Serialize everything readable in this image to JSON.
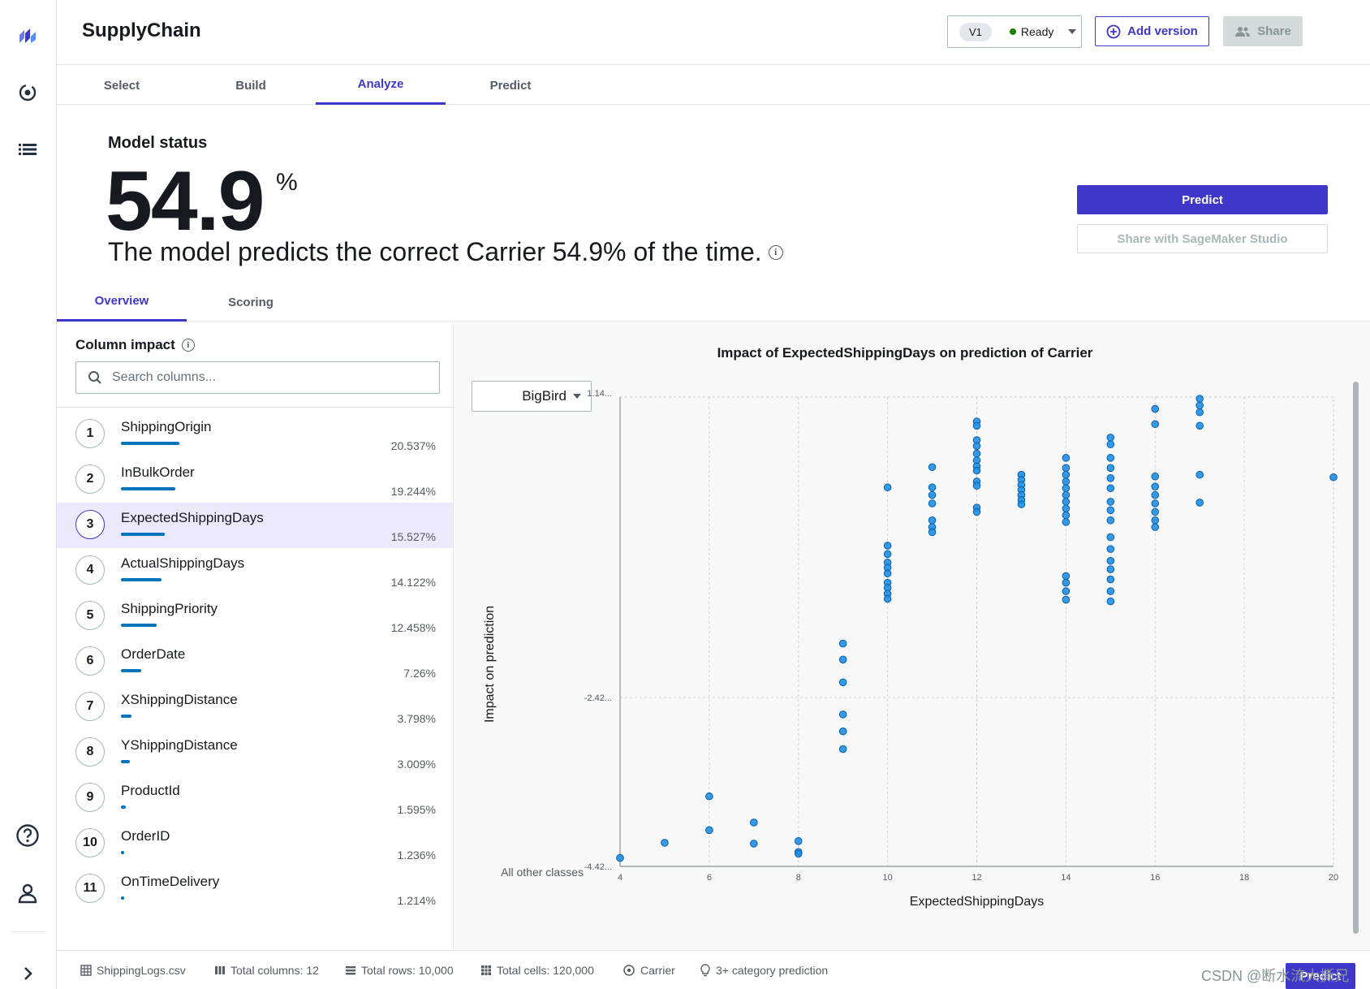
{
  "header": {
    "title": "SupplyChain",
    "version_label": "V1",
    "status": "Ready",
    "add_version": "Add version",
    "share": "Share",
    "status_color": "#1d8102",
    "accent": "#3f37c9"
  },
  "rail": {
    "icons": [
      "logo-icon",
      "models-icon",
      "list-icon",
      "help-icon",
      "user-icon",
      "expand-icon"
    ]
  },
  "tabs": [
    "Select",
    "Build",
    "Analyze",
    "Predict"
  ],
  "status": {
    "heading": "Model status",
    "accuracy": "54.9",
    "unit": "%",
    "description": "The model predicts the correct Carrier 54.9% of the time.",
    "predict_button": "Predict",
    "share_button": "Share with SageMaker Studio"
  },
  "subtabs": [
    "Overview",
    "Scoring"
  ],
  "column_impact": {
    "title": "Column impact",
    "search_placeholder": "Search columns...",
    "rows": [
      {
        "rank": "1",
        "name": "ShippingOrigin",
        "pct": "20.537%",
        "value": 20.537
      },
      {
        "rank": "2",
        "name": "InBulkOrder",
        "pct": "19.244%",
        "value": 19.244
      },
      {
        "rank": "3",
        "name": "ExpectedShippingDays",
        "pct": "15.527%",
        "value": 15.527
      },
      {
        "rank": "4",
        "name": "ActualShippingDays",
        "pct": "14.122%",
        "value": 14.122
      },
      {
        "rank": "5",
        "name": "ShippingPriority",
        "pct": "12.458%",
        "value": 12.458
      },
      {
        "rank": "6",
        "name": "OrderDate",
        "pct": "7.26%",
        "value": 7.26
      },
      {
        "rank": "7",
        "name": "XShippingDistance",
        "pct": "3.798%",
        "value": 3.798
      },
      {
        "rank": "8",
        "name": "YShippingDistance",
        "pct": "3.009%",
        "value": 3.009
      },
      {
        "rank": "9",
        "name": "ProductId",
        "pct": "1.595%",
        "value": 1.595
      },
      {
        "rank": "10",
        "name": "OrderID",
        "pct": "1.236%",
        "value": 1.236
      },
      {
        "rank": "11",
        "name": "OnTimeDelivery",
        "pct": "1.214%",
        "value": 1.214
      }
    ]
  },
  "chart": {
    "class_selected": "BigBird"
  },
  "chart_data": {
    "type": "scatter",
    "title": "Impact of ExpectedShippingDays on prediction of Carrier",
    "xlabel": "ExpectedShippingDays",
    "ylabel": "Impact on prediction",
    "baseline_label": "All other classes",
    "xlim": [
      4,
      20
    ],
    "ylim": [
      -4.42,
      1.14
    ],
    "x_ticks": [
      "4",
      "6",
      "8",
      "10",
      "12",
      "14",
      "16",
      "18",
      "20"
    ],
    "y_tick_labels": [
      "1.14...",
      "-2.42...",
      "-4.42..."
    ],
    "y_tick_values": [
      1.14,
      -2.42,
      -4.42
    ],
    "point_color": "#1e8fe6",
    "points": [
      {
        "x": 4,
        "y": -4.32
      },
      {
        "x": 5,
        "y": -4.14
      },
      {
        "x": 6,
        "y": -3.59
      },
      {
        "x": 6,
        "y": -3.99
      },
      {
        "x": 7,
        "y": -3.9
      },
      {
        "x": 7,
        "y": -4.15
      },
      {
        "x": 8,
        "y": -4.12
      },
      {
        "x": 8,
        "y": -4.25
      },
      {
        "x": 8,
        "y": -4.27
      },
      {
        "x": 9,
        "y": -1.78
      },
      {
        "x": 9,
        "y": -1.97
      },
      {
        "x": 9,
        "y": -2.24
      },
      {
        "x": 9,
        "y": -2.62
      },
      {
        "x": 9,
        "y": -2.82
      },
      {
        "x": 9,
        "y": -3.03
      },
      {
        "x": 10,
        "y": 0.07
      },
      {
        "x": 10,
        "y": -0.62
      },
      {
        "x": 10,
        "y": -0.72
      },
      {
        "x": 10,
        "y": -0.82
      },
      {
        "x": 10,
        "y": -0.88
      },
      {
        "x": 10,
        "y": -0.95
      },
      {
        "x": 10,
        "y": -1.06
      },
      {
        "x": 10,
        "y": -1.12
      },
      {
        "x": 10,
        "y": -1.19
      },
      {
        "x": 10,
        "y": -1.25
      },
      {
        "x": 11,
        "y": 0.31
      },
      {
        "x": 11,
        "y": 0.07
      },
      {
        "x": 11,
        "y": -0.02
      },
      {
        "x": 11,
        "y": -0.12
      },
      {
        "x": 11,
        "y": -0.32
      },
      {
        "x": 11,
        "y": -0.4
      },
      {
        "x": 11,
        "y": -0.46
      },
      {
        "x": 12,
        "y": 0.85
      },
      {
        "x": 12,
        "y": 0.8
      },
      {
        "x": 12,
        "y": 0.63
      },
      {
        "x": 12,
        "y": 0.56
      },
      {
        "x": 12,
        "y": 0.47
      },
      {
        "x": 12,
        "y": 0.39
      },
      {
        "x": 12,
        "y": 0.32
      },
      {
        "x": 12,
        "y": 0.27
      },
      {
        "x": 12,
        "y": 0.14
      },
      {
        "x": 12,
        "y": 0.09
      },
      {
        "x": 12,
        "y": -0.17
      },
      {
        "x": 12,
        "y": -0.22
      },
      {
        "x": 13,
        "y": 0.22
      },
      {
        "x": 13,
        "y": 0.16
      },
      {
        "x": 13,
        "y": 0.1
      },
      {
        "x": 13,
        "y": 0.04
      },
      {
        "x": 13,
        "y": -0.02
      },
      {
        "x": 13,
        "y": -0.08
      },
      {
        "x": 13,
        "y": -0.13
      },
      {
        "x": 14,
        "y": 0.42
      },
      {
        "x": 14,
        "y": 0.3
      },
      {
        "x": 14,
        "y": 0.22
      },
      {
        "x": 14,
        "y": 0.14
      },
      {
        "x": 14,
        "y": 0.06
      },
      {
        "x": 14,
        "y": -0.02
      },
      {
        "x": 14,
        "y": -0.1
      },
      {
        "x": 14,
        "y": -0.18
      },
      {
        "x": 14,
        "y": -0.26
      },
      {
        "x": 14,
        "y": -0.34
      },
      {
        "x": 14,
        "y": -0.98
      },
      {
        "x": 14,
        "y": -1.06
      },
      {
        "x": 14,
        "y": -1.16
      },
      {
        "x": 14,
        "y": -1.26
      },
      {
        "x": 15,
        "y": 0.66
      },
      {
        "x": 15,
        "y": 0.58
      },
      {
        "x": 15,
        "y": 0.42
      },
      {
        "x": 15,
        "y": 0.3
      },
      {
        "x": 15,
        "y": 0.18
      },
      {
        "x": 15,
        "y": 0.06
      },
      {
        "x": 15,
        "y": -0.1
      },
      {
        "x": 15,
        "y": -0.2
      },
      {
        "x": 15,
        "y": -0.32
      },
      {
        "x": 15,
        "y": -0.52
      },
      {
        "x": 15,
        "y": -0.66
      },
      {
        "x": 15,
        "y": -0.8
      },
      {
        "x": 15,
        "y": -0.9
      },
      {
        "x": 15,
        "y": -1.02
      },
      {
        "x": 15,
        "y": -1.16
      },
      {
        "x": 15,
        "y": -1.28
      },
      {
        "x": 16,
        "y": 1.0
      },
      {
        "x": 16,
        "y": 0.82
      },
      {
        "x": 16,
        "y": 0.2
      },
      {
        "x": 16,
        "y": 0.08
      },
      {
        "x": 16,
        "y": -0.02
      },
      {
        "x": 16,
        "y": -0.12
      },
      {
        "x": 16,
        "y": -0.22
      },
      {
        "x": 16,
        "y": -0.32
      },
      {
        "x": 16,
        "y": -0.4
      },
      {
        "x": 17,
        "y": 1.12
      },
      {
        "x": 17,
        "y": 1.04
      },
      {
        "x": 17,
        "y": 0.96
      },
      {
        "x": 17,
        "y": 0.8
      },
      {
        "x": 17,
        "y": 0.22
      },
      {
        "x": 17,
        "y": -0.11
      },
      {
        "x": 20,
        "y": 0.19
      }
    ]
  },
  "footer": {
    "file": "ShippingLogs.csv",
    "columns": "Total columns: 12",
    "rows": "Total rows: 10,000",
    "cells": "Total cells: 120,000",
    "target": "Carrier",
    "problem_type": "3+ category prediction",
    "watermark": "CSDN @断水流大撕兄",
    "corner_button": "Predict"
  }
}
